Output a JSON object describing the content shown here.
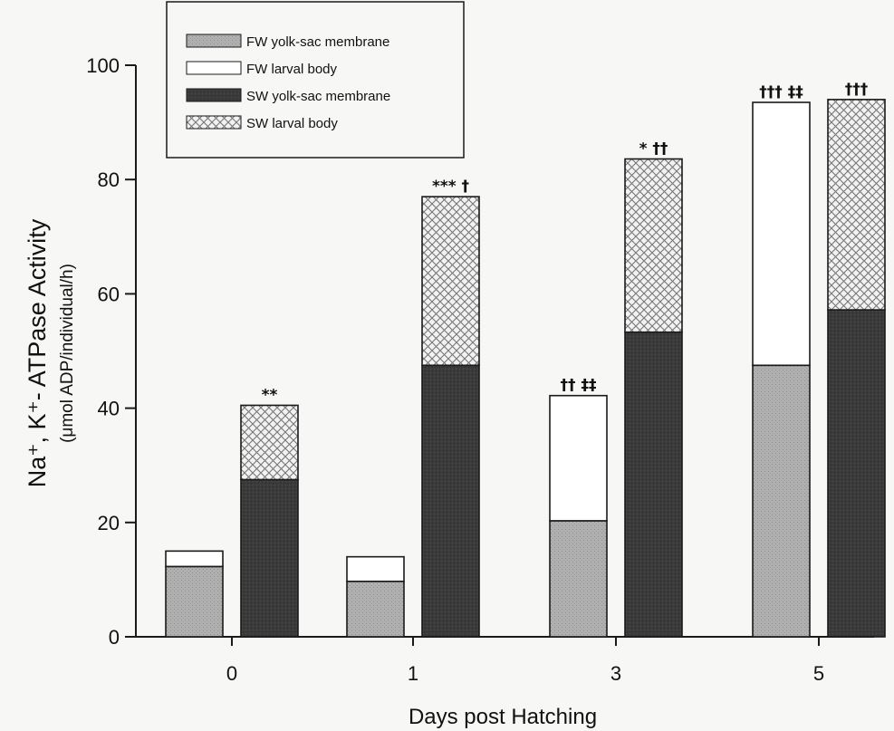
{
  "colors": {
    "fw_yolk": "#a9a9a9",
    "fw_body": "#ffffff",
    "sw_yolk": "#3a3a3a",
    "sw_body": "crosshatch"
  },
  "chart_data": {
    "type": "bar",
    "stacked": true,
    "x_title": "Days post Hatching",
    "y_title": "Na⁺, K⁺- ATPase Activity",
    "y_subtitle": "(μmol ADP/individual/h)",
    "ylim": [
      0,
      100
    ],
    "yticks": [
      "0",
      "20",
      "40",
      "60",
      "80",
      "100"
    ],
    "categories": [
      "0",
      "1",
      "3",
      "5"
    ],
    "legend": {
      "placement": "top-left",
      "entries": [
        {
          "label": "FW yolk-sac membrane",
          "pattern": "fw_yolk"
        },
        {
          "label": "FW larval body",
          "pattern": "fw_body"
        },
        {
          "label": "SW yolk-sac membrane",
          "pattern": "sw_yolk"
        },
        {
          "label": "SW larval body",
          "pattern": "sw_body"
        }
      ]
    },
    "groups": [
      {
        "category": "0",
        "fw": {
          "yolk": 12.3,
          "body": 2.7,
          "annotation": ""
        },
        "sw": {
          "yolk": 27.5,
          "body": 13.0,
          "annotation": "**"
        }
      },
      {
        "category": "1",
        "fw": {
          "yolk": 9.7,
          "body": 4.3,
          "annotation": ""
        },
        "sw": {
          "yolk": 47.5,
          "body": 29.5,
          "annotation": "*** †"
        }
      },
      {
        "category": "3",
        "fw": {
          "yolk": 20.3,
          "body": 21.9,
          "annotation": "†† ‡‡"
        },
        "sw": {
          "yolk": 53.3,
          "body": 30.3,
          "annotation": "* ††"
        }
      },
      {
        "category": "5",
        "fw": {
          "yolk": 47.5,
          "body": 46.0,
          "annotation": "†††  ‡‡"
        },
        "sw": {
          "yolk": 57.2,
          "body": 36.8,
          "annotation": "†††"
        }
      }
    ]
  }
}
